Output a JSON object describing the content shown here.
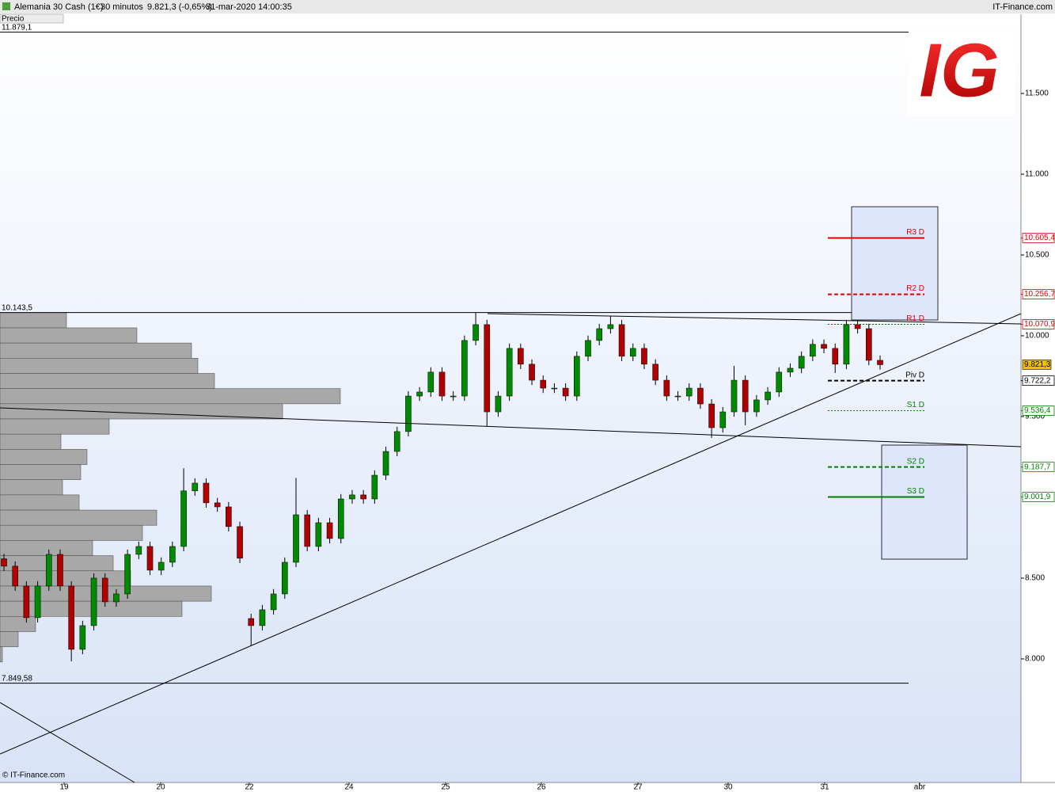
{
  "header": {
    "instrument": "Alemania 30 Cash (1€)",
    "timeframe": "30 minutos",
    "quote": "9.821,3 (-0,65%)",
    "datetime": "31-mar-2020 14:00:35",
    "brand": "IT-Finance.com",
    "panel": "Precio"
  },
  "footer": "© IT-Finance.com",
  "logo": "IG",
  "chart_data": {
    "type": "candlestick",
    "ylim": [
      7235,
      11990
    ],
    "yticks": [
      {
        "value": 8000,
        "label": "8.000"
      },
      {
        "value": 8500,
        "label": "8.500"
      },
      {
        "value": 9500,
        "label": "9.500"
      },
      {
        "value": 10000,
        "label": "10.000"
      },
      {
        "value": 10500,
        "label": "10.500"
      },
      {
        "value": 11000,
        "label": "11.000"
      },
      {
        "value": 11500,
        "label": "11.500"
      }
    ],
    "x_labels": [
      "19",
      "20",
      "22",
      "24",
      "25",
      "26",
      "27",
      "30",
      "31",
      "abr"
    ],
    "up_color": "#008a00",
    "down_color": "#b00000",
    "open": [
      8620,
      8574,
      8451,
      8255,
      8451,
      8647,
      8451,
      8059,
      8206,
      8500,
      8353,
      8402,
      8647,
      8696,
      8549,
      8598,
      8696,
      9040,
      9088,
      8966,
      8941,
      8819,
      8250,
      8206,
      8304,
      8402,
      8598,
      8892,
      8696,
      8843,
      8745,
      8990,
      9015,
      8990,
      9137,
      9284,
      9407,
      9627,
      9652,
      9775,
      9627,
      9627,
      9971,
      10069,
      9529,
      9627,
      9922,
      9824,
      9725,
      9676,
      9676,
      9627,
      9873,
      9971,
      10044,
      10069,
      9873,
      9922,
      9824,
      9725,
      9627,
      9627,
      9676,
      9578,
      9431,
      9529,
      9725,
      9529,
      9603,
      9652,
      9775,
      9799,
      9873,
      9947,
      9922,
      9824,
      10069,
      10044,
      9848
    ],
    "high": [
      8650,
      8604,
      8481,
      8481,
      8677,
      8677,
      8481,
      8236,
      8530,
      8530,
      8432,
      8677,
      8726,
      8726,
      8628,
      8726,
      9180,
      9118,
      9118,
      8996,
      8971,
      8849,
      8280,
      8334,
      8432,
      8628,
      9120,
      8922,
      8873,
      8873,
      9020,
      9045,
      9045,
      9167,
      9314,
      9437,
      9657,
      9682,
      9805,
      9805,
      9657,
      10001,
      10143,
      10099,
      9657,
      9952,
      9952,
      9854,
      9755,
      9706,
      9706,
      9903,
      10001,
      10074,
      10120,
      10099,
      9952,
      9952,
      9854,
      9755,
      9657,
      9706,
      9706,
      9608,
      9559,
      9814,
      9755,
      9633,
      9682,
      9805,
      9829,
      9903,
      9977,
      9977,
      9952,
      10099,
      10099,
      10074,
      9878
    ],
    "low": [
      8544,
      8421,
      8225,
      8225,
      8421,
      8421,
      7985,
      8029,
      8176,
      8323,
      8323,
      8372,
      8617,
      8519,
      8519,
      8568,
      8666,
      9010,
      8936,
      8911,
      8789,
      8593,
      8083,
      8176,
      8274,
      8372,
      8568,
      8666,
      8666,
      8715,
      8715,
      8960,
      8960,
      8960,
      9107,
      9254,
      9377,
      9597,
      9622,
      9597,
      9597,
      9597,
      9941,
      9441,
      9499,
      9597,
      9794,
      9695,
      9646,
      9646,
      9597,
      9597,
      9843,
      9941,
      10014,
      9843,
      9843,
      9794,
      9695,
      9597,
      9597,
      9597,
      9548,
      9368,
      9401,
      9499,
      9446,
      9499,
      9573,
      9622,
      9745,
      9769,
      9843,
      9892,
      9770,
      9794,
      10014,
      9818,
      9791
    ],
    "close": [
      8574,
      8451,
      8255,
      8451,
      8647,
      8451,
      8059,
      8206,
      8500,
      8353,
      8402,
      8647,
      8696,
      8549,
      8598,
      8696,
      9040,
      9088,
      8966,
      8941,
      8819,
      8623,
      8206,
      8304,
      8402,
      8598,
      8892,
      8696,
      8843,
      8745,
      8990,
      9015,
      8990,
      9137,
      9284,
      9407,
      9627,
      9652,
      9775,
      9627,
      9627,
      9971,
      10069,
      9529,
      9627,
      9922,
      9824,
      9725,
      9676,
      9676,
      9627,
      9873,
      9971,
      10044,
      10069,
      9873,
      9922,
      9824,
      9725,
      9627,
      9627,
      9676,
      9578,
      9431,
      9529,
      9725,
      9529,
      9603,
      9652,
      9775,
      9799,
      9873,
      9947,
      9922,
      9824,
      10069,
      10044,
      9848,
      9821
    ],
    "hlines": [
      {
        "value": 11879.1,
        "label": "11.879,1"
      },
      {
        "value": 10143.5,
        "label": "10.143,5"
      },
      {
        "value": 7849.58,
        "label": "7.849,58"
      }
    ],
    "pivots": [
      {
        "name": "R3 D",
        "value": 10605.4,
        "label": "10.605,4",
        "color": "#e00000",
        "style": "solid"
      },
      {
        "name": "R2 D",
        "value": 10256.7,
        "label": "10.256,7",
        "color": "#e00000",
        "style": "dashed"
      },
      {
        "name": "R1 D",
        "value": 10070.9,
        "label": "10.070,9",
        "color": "#e00000",
        "style": "dotted"
      },
      {
        "name": "Piv D",
        "value": 9722.2,
        "label": "9.722,2",
        "color": "#000000",
        "style": "dashed"
      },
      {
        "name": "S1 D",
        "value": 9536.4,
        "label": "9.536,4",
        "color": "#008000",
        "style": "dotted"
      },
      {
        "name": "S2 D",
        "value": 9187.7,
        "label": "9.187,7",
        "color": "#008000",
        "style": "dashed"
      },
      {
        "name": "S3 D",
        "value": 9001.9,
        "label": "9.001,9",
        "color": "#008000",
        "style": "solid"
      }
    ],
    "last_price": {
      "value": 9821.3,
      "label": "9.821,3",
      "color": "#f0c000"
    },
    "volume_profile": {
      "color": "#a8a8a8",
      "xlim": [
        0,
        1290
      ],
      "bins": [
        10143,
        10049,
        9955,
        9861,
        9767,
        9673,
        9579,
        9485,
        9391,
        9297,
        9203,
        9109,
        9015,
        8921,
        8827,
        8733,
        8639,
        8545,
        8451,
        8357,
        8263,
        8169,
        8075,
        7981
      ],
      "values": [
        84,
        173,
        242,
        250,
        271,
        430,
        357,
        138,
        77,
        110,
        102,
        79,
        100,
        198,
        180,
        117,
        143,
        165,
        267,
        230,
        45,
        23,
        3
      ]
    }
  }
}
